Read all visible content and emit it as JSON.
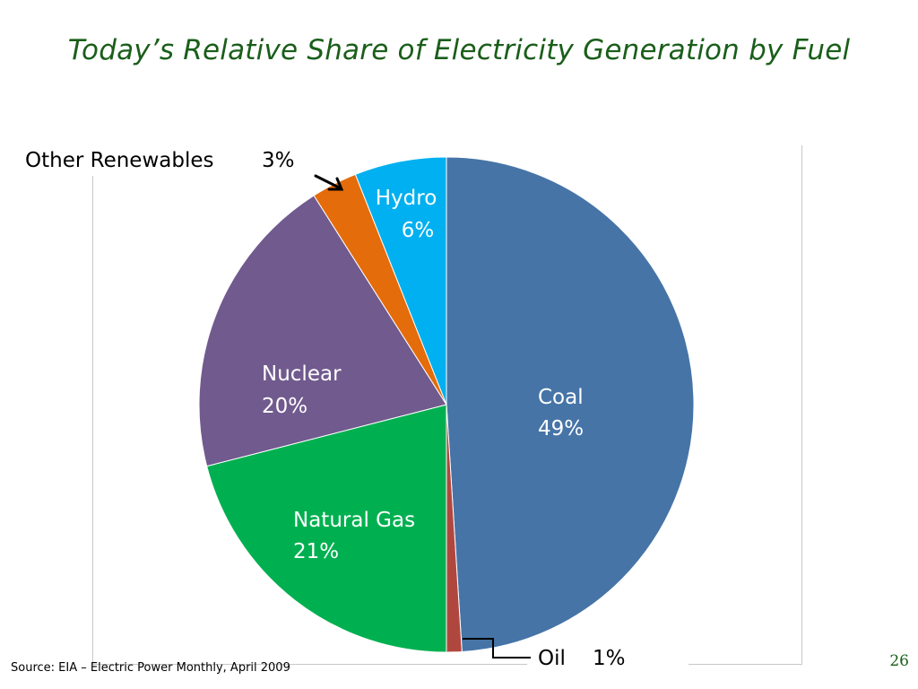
{
  "title": "Today’s Relative Share of Electricity Generation by Fuel",
  "source": "Source: EIA – Electric Power Monthly,  April 2009",
  "page_number": "26",
  "chart_data": {
    "type": "pie",
    "title": "Today’s Relative Share of Electricity Generation by Fuel",
    "start": "top",
    "direction": "clockwise",
    "slices": [
      {
        "name": "Coal",
        "value": 49,
        "label": "49%",
        "color": "#4674a7"
      },
      {
        "name": "Oil",
        "value": 1,
        "label": "1%",
        "color": "#b0473f"
      },
      {
        "name": "Natural Gas",
        "value": 21,
        "label": "21%",
        "color": "#00b050"
      },
      {
        "name": "Nuclear",
        "value": 20,
        "label": "20%",
        "color": "#715a8e"
      },
      {
        "name": "Other Renewables",
        "value": 3,
        "label": "3%",
        "color": "#e46c0a"
      },
      {
        "name": "Hydro",
        "value": 6,
        "label": "6%",
        "color": "#00b0f0"
      }
    ]
  }
}
